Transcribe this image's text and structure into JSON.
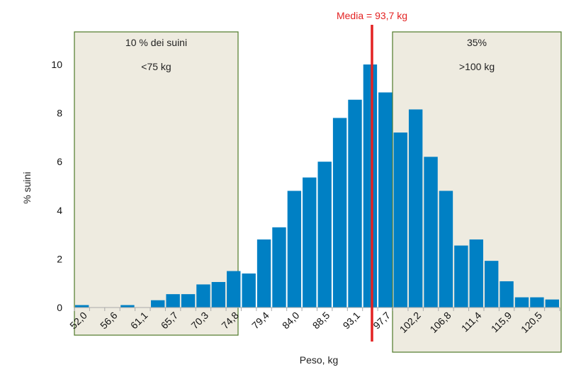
{
  "chart_data": {
    "type": "bar",
    "title": "",
    "xlabel": "Peso, kg",
    "ylabel": "% suini",
    "ylim": [
      0,
      10
    ],
    "yticks": [
      0,
      2,
      4,
      6,
      8,
      10
    ],
    "xtick_labels": [
      "52,0",
      "56,6",
      "61,1",
      "65,7",
      "70,3",
      "74,8",
      "79,4",
      "84,0",
      "88,5",
      "93,1",
      "97,7",
      "102,2",
      "106,8",
      "111,4",
      "115,9",
      "120,5"
    ],
    "values": [
      0.1,
      0,
      0,
      0.1,
      0,
      0.3,
      0.55,
      0.55,
      0.95,
      1.05,
      1.5,
      1.4,
      2.8,
      3.3,
      4.8,
      5.35,
      6.0,
      7.8,
      8.55,
      10.0,
      8.85,
      7.2,
      8.15,
      6.2,
      4.8,
      2.55,
      2.8,
      1.92,
      1.08,
      0.42,
      0.42,
      0.33
    ],
    "bar_color": "#0080c4",
    "mean_line": {
      "label": "Media = 93,7 kg",
      "value": 93.7,
      "color": "#e32222"
    },
    "grid": false,
    "annotations": {
      "left_box": {
        "line1": "10 % dei suini",
        "line2": "<75 kg",
        "fill": "#eeebe0",
        "border": "#4f7a28"
      },
      "right_box": {
        "line1": "35%",
        "line2": ">100 kg",
        "fill": "#eeebe0",
        "border": "#4f7a28"
      }
    }
  }
}
